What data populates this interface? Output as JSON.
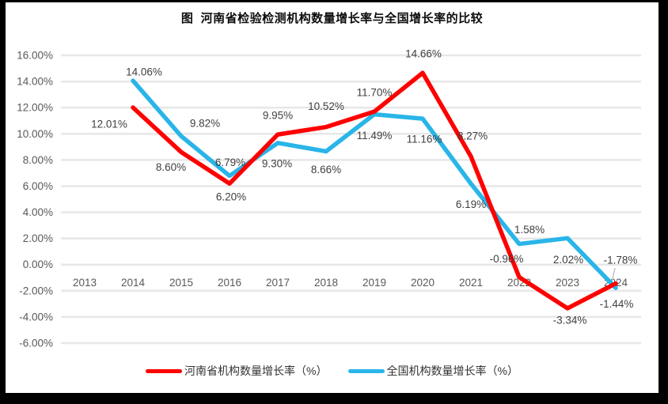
{
  "frame": {
    "border_color": "#000000",
    "background": "#FFFFFF"
  },
  "chart_data": {
    "type": "line",
    "title": "图  河南省检验检测机构数量增长率与全国增长率的比较",
    "categories": [
      "2013",
      "2014",
      "2015",
      "2016",
      "2017",
      "2018",
      "2019",
      "2020",
      "2021",
      "2022",
      "2023",
      "2024"
    ],
    "y_ticks": [
      "16.00%",
      "14.00%",
      "12.00%",
      "10.00%",
      "8.00%",
      "6.00%",
      "4.00%",
      "2.00%",
      "0.00%",
      "-2.00%",
      "-4.00%",
      "-6.00%"
    ],
    "ylim": [
      -6,
      16
    ],
    "y_tick_step": 2,
    "grid": true,
    "gridline_color": "#E7E7E7",
    "axis_text_color": "#595959",
    "data_label_color": "#3F3F3F",
    "legend_position": "bottom",
    "series": [
      {
        "name": "河南省机构数量增长率（%）",
        "color": "#FF0000",
        "values": [
          null,
          12.01,
          8.6,
          6.2,
          9.95,
          10.52,
          11.7,
          14.66,
          8.27,
          -0.96,
          -3.34,
          -1.44
        ],
        "labels": [
          null,
          "12.01%",
          "8.60%",
          "6.20%",
          "9.95%",
          "10.52%",
          "11.70%",
          "14.66%",
          "8.27%",
          "-0.96%",
          "-3.34%",
          "-1.44%"
        ]
      },
      {
        "name": "全国机构数量增长率（%）",
        "color": "#29B5E8",
        "values": [
          null,
          14.06,
          9.82,
          6.79,
          9.3,
          8.66,
          11.49,
          11.16,
          6.19,
          1.58,
          2.02,
          -1.78
        ],
        "labels": [
          null,
          "14.06%",
          "9.82%",
          "6.79%",
          "9.30%",
          "8.66%",
          "11.49%",
          "11.16%",
          "6.19%",
          "1.58%",
          "2.02%",
          "-1.78%"
        ]
      }
    ]
  }
}
